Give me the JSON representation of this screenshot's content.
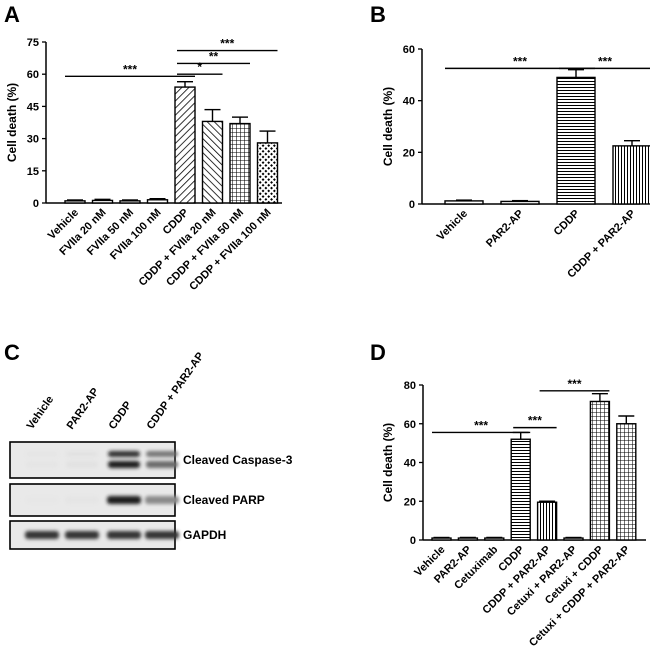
{
  "chart_data": [
    {
      "panel": "A",
      "type": "bar",
      "ylabel": "Cell death (%)",
      "ylim": [
        0,
        75
      ],
      "yticks": [
        "0",
        "15",
        "30",
        "45",
        "60",
        "75"
      ],
      "categories": [
        "Vehicle",
        "FVIIa 20 nM",
        "FVIIa 50 nM",
        "FVIIa 100 nM",
        "CDDP",
        "CDDP + FVIIa 20 nM",
        "CDDP + FVIIa 50 nM",
        "CDDP + FVIIa 100 nM"
      ],
      "values": [
        1,
        1.2,
        1,
        1.5,
        54,
        38,
        37,
        28
      ],
      "errors": [
        0.4,
        0.5,
        0.4,
        0.5,
        2.5,
        5.5,
        3,
        5.5
      ],
      "patterns": [
        "white",
        "white",
        "white",
        "white",
        "diag-r",
        "diag-l",
        "grid",
        "dots"
      ],
      "significance": [
        {
          "from": 0,
          "to": 4,
          "label": "***",
          "y": 59
        },
        {
          "from": 4,
          "to": 5,
          "label": "*",
          "y": 60
        },
        {
          "from": 4,
          "to": 6,
          "label": "**",
          "y": 65
        },
        {
          "from": 4,
          "to": 7,
          "label": "***",
          "y": 71
        }
      ]
    },
    {
      "panel": "B",
      "type": "bar",
      "ylabel": "Cell death (%)",
      "ylim": [
        0,
        60
      ],
      "yticks": [
        "0",
        "20",
        "40",
        "60"
      ],
      "categories": [
        "Vehicle",
        "PAR2-AP",
        "CDDP",
        "CDDP + PAR2-AP"
      ],
      "values": [
        1.2,
        1,
        49,
        22.5
      ],
      "errors": [
        0.3,
        0.3,
        3,
        2
      ],
      "patterns": [
        "white",
        "white",
        "hlines",
        "vlines"
      ],
      "significance": [
        {
          "from": 0,
          "to": 2,
          "label": "***",
          "y": 52.5
        },
        {
          "from": 2,
          "to": 3,
          "label": "***",
          "y": 52.5
        }
      ]
    },
    {
      "panel": "D",
      "type": "bar",
      "ylabel": "Cell death (%)",
      "ylim": [
        0,
        80
      ],
      "yticks": [
        "0",
        "20",
        "40",
        "60",
        "80"
      ],
      "categories": [
        "Vehicle",
        "PAR2-AP",
        "Cetuximab",
        "CDDP",
        "CDDP + PAR2-AP",
        "Cetuxi + PAR2-AP",
        "Cetuxi + CDDP",
        "Cetuxi + CDDP + PAR2-AP"
      ],
      "values": [
        1,
        1,
        1,
        52,
        19.5,
        1,
        71.5,
        60
      ],
      "errors": [
        0.3,
        0.3,
        0.3,
        3.5,
        0.5,
        0.3,
        4,
        4
      ],
      "patterns": [
        "white",
        "white",
        "white",
        "hlines",
        "vlines",
        "white",
        "grid",
        "grid"
      ],
      "significance": [
        {
          "from": 0,
          "to": 3,
          "label": "***",
          "y": 55.5
        },
        {
          "from": 3,
          "to": 4,
          "label": "***",
          "y": 58
        },
        {
          "from": 4,
          "to": 6,
          "label": "***",
          "y": 77
        }
      ]
    }
  ],
  "panel_labels": {
    "a": "A",
    "b": "B",
    "c": "C",
    "d": "D"
  },
  "blot": {
    "lanes": [
      "Vehicle",
      "PAR2-AP",
      "CDDP",
      "CDDP + PAR2-AP"
    ],
    "rows": [
      {
        "label": "Cleaved Caspase-3",
        "intensities": [
          0.03,
          0.04,
          0.95,
          0.6
        ],
        "double_band": true
      },
      {
        "label": "Cleaved PARP",
        "intensities": [
          0.02,
          0.03,
          0.95,
          0.45
        ],
        "double_band": false
      },
      {
        "label": "GAPDH",
        "intensities": [
          0.85,
          0.85,
          0.85,
          0.85
        ],
        "double_band": false
      }
    ]
  }
}
